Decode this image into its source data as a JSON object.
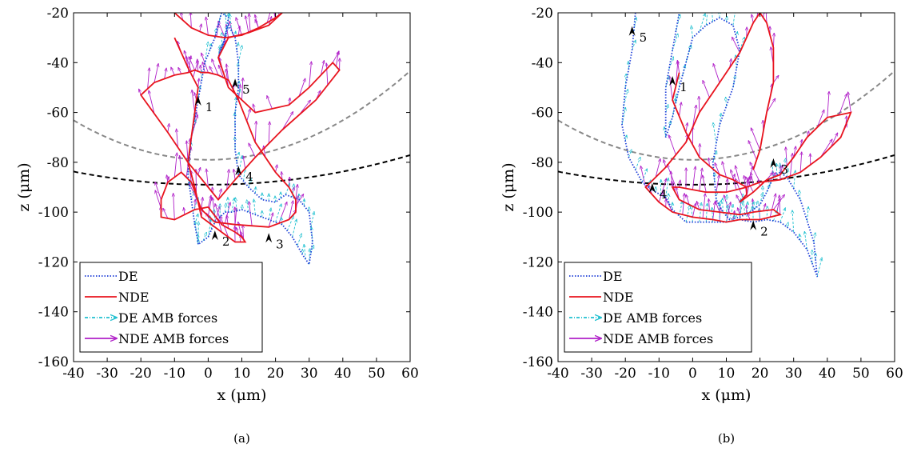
{
  "chart_data": [
    {
      "type": "line",
      "panel_label": "(a)",
      "xlabel": "x (μm)",
      "ylabel": "z (μm)",
      "xlim": [
        -40,
        60
      ],
      "ylim": [
        -160,
        -20
      ],
      "xticks": [
        "-40",
        "-30",
        "-20",
        "-10",
        "0",
        "10",
        "20",
        "30",
        "40",
        "50",
        "60"
      ],
      "yticks": [
        "-20",
        "-40",
        "-60",
        "-80",
        "-100",
        "-120",
        "-140",
        "-160"
      ],
      "grid": false,
      "legend_position": "bottom-left",
      "legend": [
        "DE",
        "NDE",
        "DE AMB forces",
        "NDE AMB forces"
      ],
      "colors": {
        "DE": "#1f3fd8",
        "NDE": "#e8141e",
        "DE_AMB": "#20c0d0",
        "NDE_AMB": "#b020c8",
        "ref_gray": "#888888",
        "ref_black": "#000000"
      },
      "series": [
        {
          "name": "DE",
          "x": [
            4,
            2,
            -1,
            -3,
            -5,
            -6,
            -5,
            -4,
            -3,
            -3,
            0,
            2,
            5,
            7,
            10,
            14,
            18,
            22,
            25,
            28,
            30,
            31,
            30,
            27,
            23,
            20,
            16,
            12,
            9,
            8,
            8,
            9,
            9,
            8,
            6,
            4,
            3,
            5,
            6,
            4
          ],
          "y": [
            -20,
            -30,
            -40,
            -55,
            -70,
            -85,
            -95,
            -105,
            -112,
            -113,
            -110,
            -104,
            -100,
            -100,
            -99,
            -101,
            -103,
            -105,
            -110,
            -117,
            -121,
            -112,
            -100,
            -95,
            -93,
            -96,
            -95,
            -90,
            -85,
            -75,
            -60,
            -50,
            -40,
            -30,
            -25,
            -35,
            -38,
            -30,
            -22,
            -20
          ]
        },
        {
          "name": "NDE",
          "x": [
            -10,
            -5,
            0,
            5,
            10,
            15,
            20,
            22,
            18,
            12,
            6,
            3,
            6,
            14,
            24,
            30,
            37,
            39,
            32,
            22,
            14,
            8,
            3,
            0,
            -6,
            -12,
            -20,
            -16,
            -10,
            -6,
            -4,
            -2,
            0,
            3,
            6,
            9,
            14,
            20,
            24,
            26,
            26,
            24,
            18,
            8,
            2,
            -2,
            -5,
            -8,
            -12,
            -14,
            -14,
            -10,
            -4,
            0,
            4,
            8,
            10,
            11,
            8,
            4,
            -2,
            -4,
            -6,
            -5,
            -4,
            -3,
            -6,
            -10
          ],
          "y": [
            -20,
            -26,
            -29,
            -30,
            -29,
            -26,
            -22,
            -20,
            -25,
            -28,
            -30,
            -38,
            -50,
            -60,
            -57,
            -50,
            -40,
            -43,
            -55,
            -67,
            -78,
            -87,
            -95,
            -90,
            -80,
            -68,
            -53,
            -48,
            -45,
            -44,
            -43,
            -44,
            -44,
            -45,
            -47,
            -55,
            -72,
            -84,
            -90,
            -95,
            -100,
            -103,
            -106,
            -105,
            -104,
            -99,
            -88,
            -84,
            -88,
            -95,
            -102,
            -103,
            -99,
            -98,
            -105,
            -108,
            -110,
            -112,
            -112,
            -108,
            -102,
            -90,
            -80,
            -70,
            -60,
            -50,
            -42,
            -30
          ]
        },
        {
          "name": "DE AMB forces",
          "type": "quiver"
        },
        {
          "name": "NDE AMB forces",
          "type": "quiver"
        }
      ],
      "reference_curves": [
        {
          "name": "gray-dashed",
          "color": "#888888"
        },
        {
          "name": "black-dashed",
          "color": "#000000"
        }
      ],
      "annotations": [
        {
          "label": "1",
          "x": -3,
          "y": -55
        },
        {
          "label": "2",
          "x": 2,
          "y": -109
        },
        {
          "label": "3",
          "x": 18,
          "y": -110
        },
        {
          "label": "4",
          "x": 9,
          "y": -83
        },
        {
          "label": "5",
          "x": 8,
          "y": -48
        }
      ]
    },
    {
      "type": "line",
      "panel_label": "(b)",
      "xlabel": "x (μm)",
      "ylabel": "z (μm)",
      "xlim": [
        -40,
        60
      ],
      "ylim": [
        -160,
        -20
      ],
      "xticks": [
        "-40",
        "-30",
        "-20",
        "-10",
        "0",
        "10",
        "20",
        "30",
        "40",
        "50",
        "60"
      ],
      "yticks": [
        "-20",
        "-40",
        "-60",
        "-80",
        "-100",
        "-120",
        "-140",
        "-160"
      ],
      "grid": false,
      "legend_position": "bottom-left",
      "legend": [
        "DE",
        "NDE",
        "DE AMB forces",
        "NDE AMB forces"
      ],
      "colors": {
        "DE": "#1f3fd8",
        "NDE": "#e8141e",
        "DE_AMB": "#20c0d0",
        "NDE_AMB": "#b020c8",
        "ref_gray": "#888888",
        "ref_black": "#000000"
      },
      "series": [
        {
          "name": "DE",
          "x": [
            -17,
            -18,
            -20,
            -21,
            -19,
            -15,
            -11,
            -8,
            -6,
            -2,
            2,
            6,
            10,
            14,
            18,
            22,
            26,
            30,
            34,
            37,
            36,
            32,
            28,
            26,
            24,
            22,
            20,
            17,
            14,
            11,
            9,
            7,
            6,
            8,
            12,
            14,
            12,
            8,
            4,
            0,
            -2,
            -4,
            -6,
            -8,
            -8,
            -6,
            -4
          ],
          "y": [
            -20,
            -35,
            -50,
            -65,
            -78,
            -88,
            -92,
            -94,
            -99,
            -104,
            -104,
            -104,
            -104,
            -103,
            -104,
            -103,
            -104,
            -108,
            -115,
            -126,
            -112,
            -95,
            -86,
            -84,
            -86,
            -92,
            -97,
            -100,
            -102,
            -103,
            -100,
            -95,
            -80,
            -65,
            -50,
            -35,
            -25,
            -22,
            -25,
            -30,
            -40,
            -50,
            -62,
            -70,
            -50,
            -35,
            -20
          ]
        },
        {
          "name": "NDE",
          "x": [
            -4,
            -6,
            -2,
            2,
            8,
            12,
            16,
            16,
            14,
            18,
            22,
            26,
            30,
            34,
            40,
            47,
            44,
            38,
            32,
            26,
            20,
            16,
            10,
            4,
            0,
            -4,
            -6,
            -4,
            2,
            8,
            14,
            18,
            24,
            26,
            20,
            14,
            10,
            6,
            0,
            -6,
            -10,
            -14,
            -8,
            -2,
            2,
            8,
            14,
            18,
            20,
            22,
            24,
            24,
            22,
            20,
            18
          ],
          "y": [
            -44,
            -55,
            -68,
            -78,
            -85,
            -87,
            -90,
            -93,
            -96,
            -92,
            -87,
            -85,
            -78,
            -70,
            -62,
            -60,
            -70,
            -78,
            -84,
            -87,
            -88,
            -90,
            -92,
            -92,
            -91,
            -90,
            -90,
            -95,
            -99,
            -100,
            -101,
            -100,
            -99,
            -101,
            -103,
            -103,
            -104,
            -103,
            -102,
            -100,
            -96,
            -90,
            -82,
            -72,
            -60,
            -48,
            -36,
            -24,
            -20,
            -24,
            -34,
            -48,
            -60,
            -75,
            -83
          ]
        },
        {
          "name": "DE AMB forces",
          "type": "quiver"
        },
        {
          "name": "NDE AMB forces",
          "type": "quiver"
        }
      ],
      "reference_curves": [
        {
          "name": "gray-dashed",
          "color": "#888888"
        },
        {
          "name": "black-dashed",
          "color": "#000000"
        }
      ],
      "annotations": [
        {
          "label": "1",
          "x": -6,
          "y": -47
        },
        {
          "label": "2",
          "x": 18,
          "y": -105
        },
        {
          "label": "3",
          "x": 24,
          "y": -80
        },
        {
          "label": "4",
          "x": -12,
          "y": -90
        },
        {
          "label": "5",
          "x": -18,
          "y": -27
        }
      ]
    }
  ]
}
